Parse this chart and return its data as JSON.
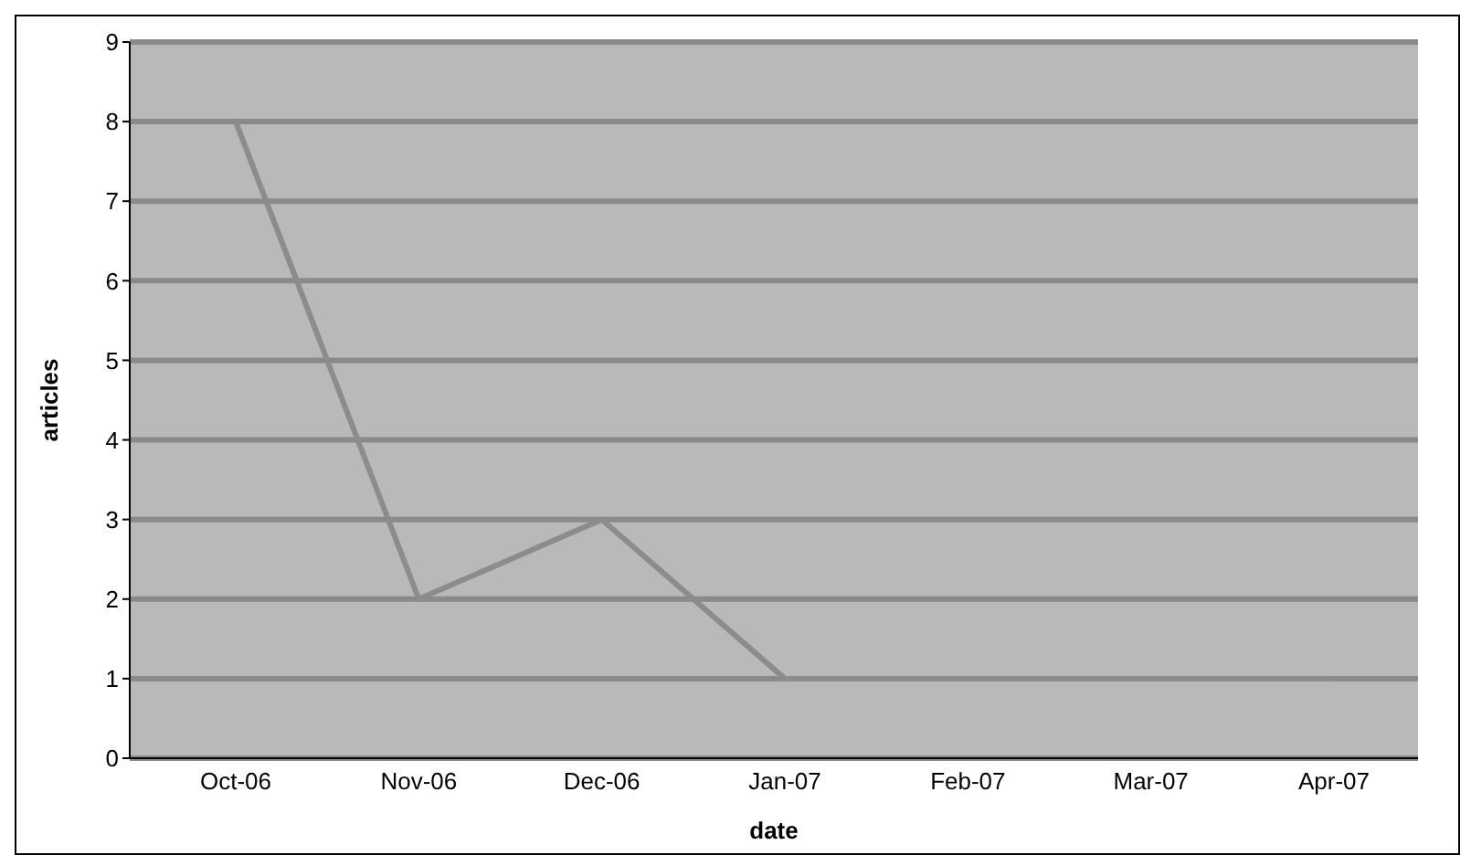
{
  "chart_data": {
    "type": "line",
    "xlabel": "date",
    "ylabel": "articles",
    "categories": [
      "Oct-06",
      "Nov-06",
      "Dec-06",
      "Jan-07",
      "Feb-07",
      "Mar-07",
      "Apr-07"
    ],
    "series": [
      {
        "color": "#8c8c8c",
        "values": [
          8,
          2,
          3,
          1,
          1,
          1,
          1
        ]
      }
    ],
    "ylim": [
      0,
      9
    ],
    "yticks": [
      0,
      1,
      2,
      3,
      4,
      5,
      6,
      7,
      8,
      9
    ],
    "grid": "y",
    "legend": false,
    "marker": "none",
    "line_style": "solid"
  }
}
